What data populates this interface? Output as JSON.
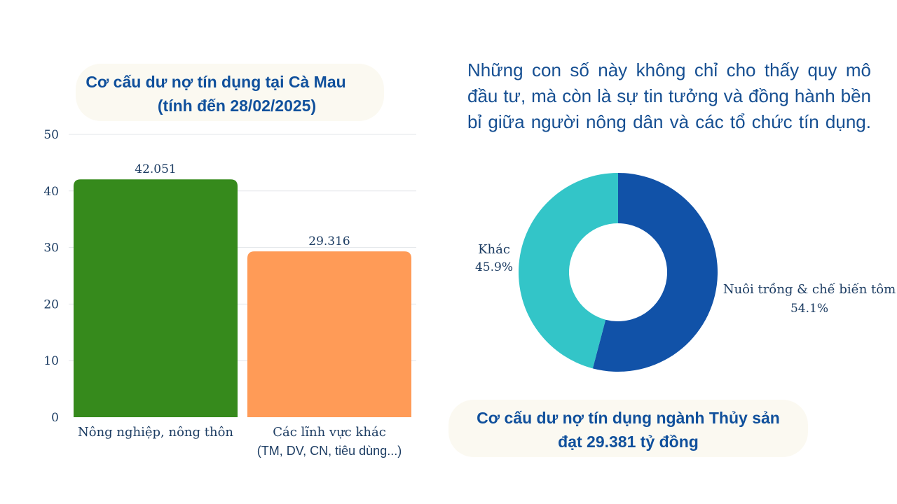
{
  "bar_chart_title": {
    "line1": "Cơ cấu dư nợ tín dụng tại Cà Mau",
    "line2": "(tính đến 28/02/2025)"
  },
  "intro_text": "Những con số này không chỉ cho thấy quy mô đầu tư, mà còn là sự tin tưởng và đồng hành bền bỉ giữa người nông dân và các tổ chức tín dụng.",
  "pie_caption": {
    "line1": "Cơ cấu dư nợ tín dụng ngành Thủy sản",
    "line2": "đạt 29.381 tỷ đồng"
  },
  "colors": {
    "bar_agri": "#368a1c",
    "bar_other": "#ff9b57",
    "pie_shrimp": "#1152a8",
    "pie_other": "#33c5c8",
    "title_blue": "#10509c",
    "axis_text": "#1d3d63"
  },
  "chart_data": [
    {
      "type": "bar",
      "categories": [
        {
          "line1": "Nông nghiệp, nông thôn",
          "line2": ""
        },
        {
          "line1": "Các lĩnh vực khác",
          "line2": "(TM, DV, CN, tiêu dùng...)"
        }
      ],
      "values": [
        42.051,
        29.316
      ],
      "value_labels": [
        "42.051",
        "29.316"
      ],
      "ylim": [
        0,
        50
      ],
      "yticks": [
        0,
        10,
        20,
        30,
        40,
        50
      ],
      "grid": true
    },
    {
      "type": "pie",
      "donut": true,
      "slices": [
        {
          "label": "Nuôi trồng & chế biến tôm",
          "value": 54.1,
          "value_label": "54.1%"
        },
        {
          "label": "Khác",
          "value": 45.9,
          "value_label": "45.9%"
        }
      ]
    }
  ]
}
